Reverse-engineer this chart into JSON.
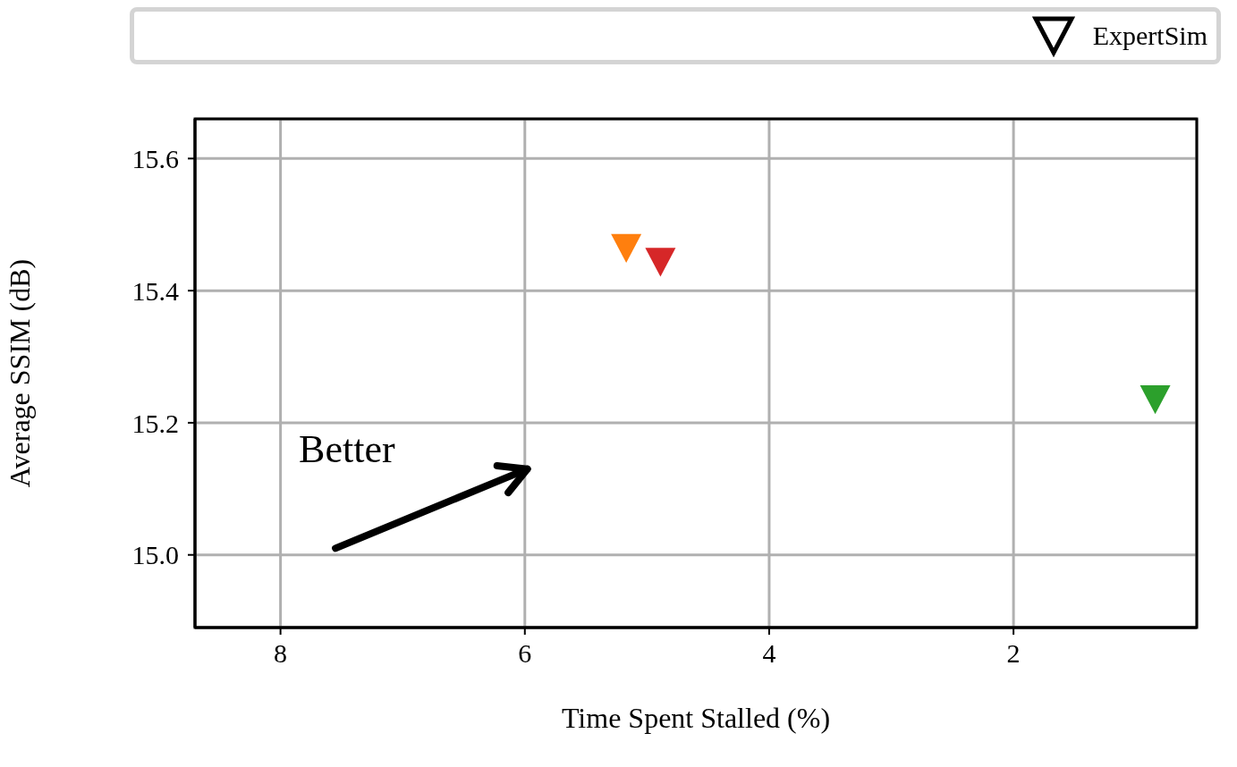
{
  "chart_data": {
    "type": "scatter",
    "xlabel": "Time Spent Stalled (%)",
    "ylabel": "Average SSIM (dB)",
    "x": [
      5.17,
      4.89,
      0.84
    ],
    "series": [
      {
        "name": "ExpertSim",
        "colors": [
          "#ff7f0e",
          "#d62728",
          "#2ca02c"
        ],
        "values": [
          15.464,
          15.443,
          15.235
        ]
      }
    ],
    "xlim": [
      8.7,
      0.5
    ],
    "xticks": [
      8,
      6,
      4,
      2
    ],
    "ylim": [
      14.89,
      15.66
    ],
    "yticks": [
      {
        "value": 15.0,
        "label": "15.0"
      },
      {
        "value": 15.2,
        "label": "15.2"
      },
      {
        "value": 15.4,
        "label": "15.4"
      },
      {
        "value": 15.6,
        "label": "15.6"
      }
    ],
    "grid": true,
    "legend": "top",
    "marker": "triangle",
    "annotations": [
      "Better"
    ]
  }
}
